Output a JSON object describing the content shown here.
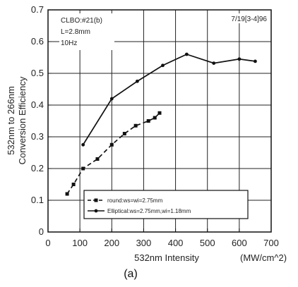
{
  "chart_data": {
    "type": "line",
    "xlabel": "532nm   Intensity",
    "xunit": "(MW/cm^2)",
    "ylabel_lines": [
      "532nm to 266nm",
      "Conversion Efficiency"
    ],
    "xlim": [
      0,
      700
    ],
    "ylim": [
      0,
      0.7
    ],
    "xticks": [
      "0",
      "100",
      "200",
      "300",
      "400",
      "500",
      "600",
      "700"
    ],
    "yticks": [
      "0",
      "0.1",
      "0.2",
      "0.3",
      "0.4",
      "0.5",
      "0.6",
      "0.7"
    ],
    "grid": true,
    "annotations": [
      "CLBO:#21(b)",
      "L=2.8mm",
      "10Hz"
    ],
    "date_note": "7/19[3-4]96",
    "caption": "(a)",
    "legend_position": "bottom-right",
    "series": [
      {
        "name": "round:ws=wi=2.75mm",
        "style": "dashed",
        "marker": "square",
        "x": [
          60,
          80,
          110,
          155,
          200,
          240,
          275,
          315,
          335,
          350
        ],
        "y": [
          0.12,
          0.15,
          0.2,
          0.23,
          0.275,
          0.31,
          0.335,
          0.35,
          0.36,
          0.375
        ]
      },
      {
        "name": "Elliptical:ws=2.75mm,wi=1.18mm",
        "style": "solid",
        "marker": "dot",
        "x": [
          110,
          200,
          280,
          360,
          435,
          520,
          600,
          650
        ],
        "y": [
          0.275,
          0.42,
          0.475,
          0.525,
          0.56,
          0.532,
          0.545,
          0.538
        ]
      }
    ]
  }
}
